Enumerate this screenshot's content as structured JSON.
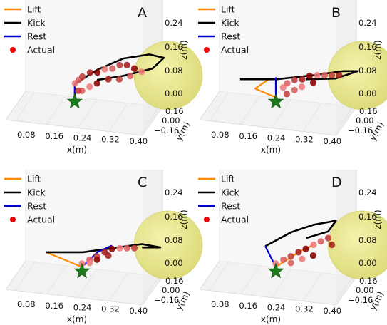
{
  "figure": {
    "legend_labels": [
      "Lift",
      "Kick",
      "Rest",
      "Actual"
    ],
    "colors": {
      "lift": "#ff8c00",
      "kick": "#000000",
      "rest": "#0000cc",
      "actual": "#ee0000",
      "ball": "#e6e47a",
      "ball_edge": "#c8c850",
      "star": "#1a7a1a",
      "trajectory_dark": "#8b0000",
      "trajectory_light": "#f47c7c"
    },
    "icons": {
      "start_marker": "star-icon",
      "ball": "sphere"
    }
  },
  "chart_data": [
    {
      "type": "scatter-3d",
      "panel": "A",
      "xlabel": "x(m)",
      "ylabel": "y(m)",
      "zlabel": "z(m)",
      "xticks": [
        "0.08",
        "0.16",
        "0.24",
        "0.32",
        "0.40"
      ],
      "yticks": [
        "0.16",
        "0.00",
        "−0.16"
      ],
      "zticks": [
        "0.24",
        "0.16",
        "0.08",
        "0.00"
      ],
      "xlim": [
        0.05,
        0.44
      ],
      "ylim": [
        -0.2,
        0.2
      ],
      "zlim": [
        -0.02,
        0.3
      ],
      "series": [
        {
          "name": "Lift",
          "kind": "line",
          "points": [
            [
              0.18,
              0.02,
              0.0
            ],
            [
              0.18,
              0.02,
              0.04
            ]
          ]
        },
        {
          "name": "Kick",
          "kind": "line",
          "points": [
            [
              0.18,
              0.02,
              0.04
            ],
            [
              0.24,
              0.03,
              0.08
            ],
            [
              0.31,
              0.05,
              0.11
            ],
            [
              0.38,
              0.06,
              0.12
            ],
            [
              0.42,
              0.06,
              0.11
            ],
            [
              0.39,
              0.05,
              0.08
            ],
            [
              0.31,
              0.04,
              0.06
            ],
            [
              0.24,
              0.03,
              0.05
            ]
          ]
        },
        {
          "name": "Rest",
          "kind": "line",
          "points": [
            [
              0.18,
              0.02,
              0.04
            ],
            [
              0.18,
              0.02,
              0.0
            ]
          ]
        },
        {
          "name": "Actual",
          "kind": "scatter",
          "points": [
            [
              0.18,
              0.03,
              0.04
            ],
            [
              0.19,
              0.03,
              0.05
            ],
            [
              0.2,
              0.03,
              0.06
            ],
            [
              0.22,
              0.04,
              0.07
            ],
            [
              0.24,
              0.04,
              0.07
            ],
            [
              0.26,
              0.04,
              0.08
            ],
            [
              0.28,
              0.05,
              0.08
            ],
            [
              0.3,
              0.05,
              0.09
            ],
            [
              0.32,
              0.05,
              0.09
            ],
            [
              0.34,
              0.05,
              0.08
            ],
            [
              0.36,
              0.05,
              0.07
            ],
            [
              0.33,
              0.04,
              0.06
            ],
            [
              0.3,
              0.04,
              0.05
            ],
            [
              0.27,
              0.04,
              0.05
            ],
            [
              0.24,
              0.03,
              0.04
            ],
            [
              0.22,
              0.03,
              0.03
            ],
            [
              0.2,
              0.02,
              0.02
            ],
            [
              0.19,
              0.02,
              0.02
            ]
          ]
        }
      ],
      "ball": {
        "center": [
          0.42,
          0.06,
          0.04
        ],
        "radius": 0.06
      },
      "start": [
        0.18,
        0.02,
        0.0
      ]
    },
    {
      "type": "scatter-3d",
      "panel": "B",
      "xlabel": "x(m)",
      "ylabel": "y(m)",
      "zlabel": "z(m)",
      "xticks": [
        "0.08",
        "0.16",
        "0.24",
        "0.32",
        "0.40"
      ],
      "yticks": [
        "0.16",
        "0.00",
        "−0.16"
      ],
      "zticks": [
        "0.24",
        "0.16",
        "0.08",
        "0.00"
      ],
      "xlim": [
        0.05,
        0.44
      ],
      "ylim": [
        -0.2,
        0.2
      ],
      "zlim": [
        -0.02,
        0.3
      ],
      "series": [
        {
          "name": "Lift",
          "kind": "line",
          "points": [
            [
              0.2,
              0.02,
              0.0
            ],
            [
              0.14,
              0.05,
              0.02
            ],
            [
              0.18,
              0.05,
              0.05
            ]
          ]
        },
        {
          "name": "Kick",
          "kind": "line",
          "points": [
            [
              0.1,
              0.04,
              0.05
            ],
            [
              0.2,
              0.04,
              0.05
            ],
            [
              0.3,
              0.05,
              0.06
            ],
            [
              0.38,
              0.06,
              0.07
            ],
            [
              0.42,
              0.06,
              0.07
            ],
            [
              0.36,
              0.05,
              0.05
            ],
            [
              0.28,
              0.04,
              0.05
            ]
          ]
        },
        {
          "name": "Rest",
          "kind": "line",
          "points": [
            [
              0.2,
              0.02,
              0.0
            ],
            [
              0.2,
              0.02,
              0.06
            ]
          ]
        },
        {
          "name": "Actual",
          "kind": "scatter",
          "points": [
            [
              0.22,
              0.02,
              0.03
            ],
            [
              0.23,
              0.03,
              0.04
            ],
            [
              0.25,
              0.03,
              0.05
            ],
            [
              0.27,
              0.04,
              0.05
            ],
            [
              0.29,
              0.04,
              0.06
            ],
            [
              0.31,
              0.05,
              0.06
            ],
            [
              0.33,
              0.05,
              0.06
            ],
            [
              0.35,
              0.05,
              0.06
            ],
            [
              0.37,
              0.05,
              0.06
            ],
            [
              0.3,
              0.04,
              0.04
            ],
            [
              0.27,
              0.03,
              0.03
            ],
            [
              0.25,
              0.03,
              0.02
            ],
            [
              0.23,
              0.02,
              0.01
            ]
          ]
        }
      ],
      "ball": {
        "center": [
          0.42,
          0.06,
          0.04
        ],
        "radius": 0.06
      },
      "start": [
        0.2,
        0.02,
        0.0
      ]
    },
    {
      "type": "scatter-3d",
      "panel": "C",
      "xlabel": "x(m)",
      "ylabel": "y(m)",
      "zlabel": "z(m)",
      "xticks": [
        "0.08",
        "0.16",
        "0.24",
        "0.32",
        "0.40"
      ],
      "yticks": [
        "0.16",
        "0.00",
        "−0.16"
      ],
      "zticks": [
        "0.24",
        "0.16",
        "0.08",
        "0.00"
      ],
      "xlim": [
        0.05,
        0.44
      ],
      "ylim": [
        -0.2,
        0.2
      ],
      "zlim": [
        -0.02,
        0.3
      ],
      "series": [
        {
          "name": "Lift",
          "kind": "line",
          "points": [
            [
              0.2,
              0.02,
              0.0
            ],
            [
              0.1,
              0.04,
              0.04
            ]
          ]
        },
        {
          "name": "Kick",
          "kind": "line",
          "points": [
            [
              0.1,
              0.04,
              0.04
            ],
            [
              0.2,
              0.04,
              0.04
            ],
            [
              0.28,
              0.05,
              0.05
            ],
            [
              0.36,
              0.06,
              0.06
            ],
            [
              0.41,
              0.06,
              0.05
            ],
            [
              0.36,
              0.06,
              0.05
            ]
          ]
        },
        {
          "name": "Rest",
          "kind": "line",
          "points": [
            [
              0.2,
              0.02,
              0.0
            ],
            [
              0.24,
              0.04,
              0.04
            ],
            [
              0.28,
              0.04,
              0.06
            ]
          ]
        },
        {
          "name": "Actual",
          "kind": "scatter",
          "points": [
            [
              0.2,
              0.02,
              0.01
            ],
            [
              0.22,
              0.03,
              0.02
            ],
            [
              0.24,
              0.03,
              0.03
            ],
            [
              0.26,
              0.04,
              0.04
            ],
            [
              0.28,
              0.04,
              0.05
            ],
            [
              0.3,
              0.05,
              0.05
            ],
            [
              0.32,
              0.05,
              0.05
            ],
            [
              0.34,
              0.05,
              0.05
            ],
            [
              0.27,
              0.04,
              0.03
            ],
            [
              0.24,
              0.03,
              0.02
            ],
            [
              0.22,
              0.03,
              0.01
            ]
          ]
        }
      ],
      "ball": {
        "center": [
          0.42,
          0.06,
          0.04
        ],
        "radius": 0.06
      },
      "start": [
        0.2,
        0.02,
        0.0
      ]
    },
    {
      "type": "scatter-3d",
      "panel": "D",
      "xlabel": "x(m)",
      "ylabel": "y(m)",
      "zlabel": "z(m)",
      "xticks": [
        "0.08",
        "0.16",
        "0.24",
        "0.32",
        "0.40"
      ],
      "yticks": [
        "0.16",
        "0.00",
        "−0.16"
      ],
      "zticks": [
        "0.24",
        "0.16",
        "0.08",
        "0.00"
      ],
      "xlim": [
        0.05,
        0.44
      ],
      "ylim": [
        -0.2,
        0.2
      ],
      "zlim": [
        -0.02,
        0.3
      ],
      "series": [
        {
          "name": "Lift",
          "kind": "line",
          "points": [
            [
              0.2,
              0.02,
              0.0
            ],
            [
              0.26,
              0.04,
              0.04
            ],
            [
              0.3,
              0.05,
              0.06
            ]
          ]
        },
        {
          "name": "Kick",
          "kind": "line",
          "points": [
            [
              0.17,
              0.03,
              0.06
            ],
            [
              0.24,
              0.04,
              0.1
            ],
            [
              0.3,
              0.05,
              0.12
            ],
            [
              0.36,
              0.06,
              0.13
            ],
            [
              0.34,
              0.05,
              0.1
            ],
            [
              0.28,
              0.05,
              0.08
            ]
          ]
        },
        {
          "name": "Rest",
          "kind": "line",
          "points": [
            [
              0.2,
              0.02,
              0.0
            ],
            [
              0.17,
              0.03,
              0.06
            ]
          ]
        },
        {
          "name": "Actual",
          "kind": "scatter",
          "points": [
            [
              0.2,
              0.02,
              0.01
            ],
            [
              0.22,
              0.03,
              0.02
            ],
            [
              0.24,
              0.03,
              0.03
            ],
            [
              0.26,
              0.04,
              0.04
            ],
            [
              0.28,
              0.04,
              0.05
            ],
            [
              0.3,
              0.05,
              0.06
            ],
            [
              0.32,
              0.05,
              0.07
            ],
            [
              0.34,
              0.05,
              0.08
            ],
            [
              0.35,
              0.05,
              0.06
            ],
            [
              0.3,
              0.04,
              0.03
            ],
            [
              0.27,
              0.04,
              0.02
            ],
            [
              0.24,
              0.03,
              0.01
            ]
          ]
        }
      ],
      "ball": {
        "center": [
          0.42,
          0.06,
          0.04
        ],
        "radius": 0.06
      },
      "start": [
        0.2,
        0.02,
        0.0
      ]
    }
  ]
}
